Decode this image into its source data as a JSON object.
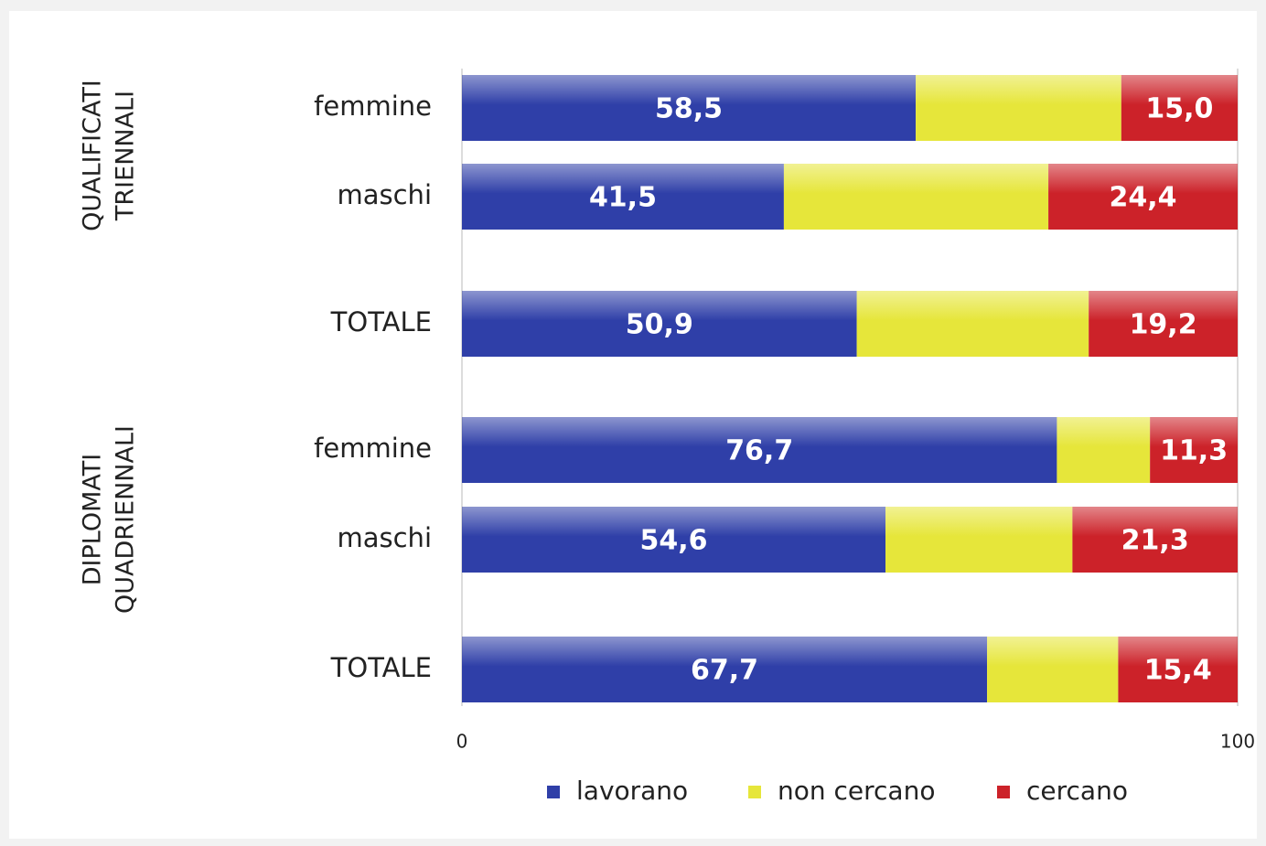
{
  "chart_data": {
    "type": "stacked-barh",
    "categories": [
      "femmine",
      "maschi",
      "TOTALE",
      "femmine",
      "maschi",
      "TOTALE"
    ],
    "groups": [
      {
        "label_lines": [
          "QUALIFICATI",
          "TRIENNALI"
        ]
      },
      {
        "label_lines": [
          "DIPLOMATI",
          "QUADRIENNALI"
        ]
      }
    ],
    "series": [
      {
        "name": "lavorano",
        "color": "#2f3fa8",
        "values": [
          58.5,
          41.5,
          50.9,
          76.7,
          54.6,
          67.7
        ],
        "value_labels": [
          "58,5",
          "41,5",
          "50,9",
          "76,7",
          "54,6",
          "67,7"
        ]
      },
      {
        "name": "non cercano",
        "color": "#e6e63a",
        "values": [
          26.5,
          34.1,
          29.9,
          12.0,
          24.1,
          16.9
        ]
      },
      {
        "name": "cercano",
        "color": "#cc2229",
        "values": [
          15.0,
          24.4,
          19.2,
          11.3,
          21.3,
          15.4
        ],
        "value_labels": [
          "15,0",
          "24,4",
          "19,2",
          "11,3",
          "21,3",
          "15,4"
        ]
      }
    ],
    "xlim": [
      0,
      100
    ],
    "xticks": [
      0,
      100
    ]
  }
}
